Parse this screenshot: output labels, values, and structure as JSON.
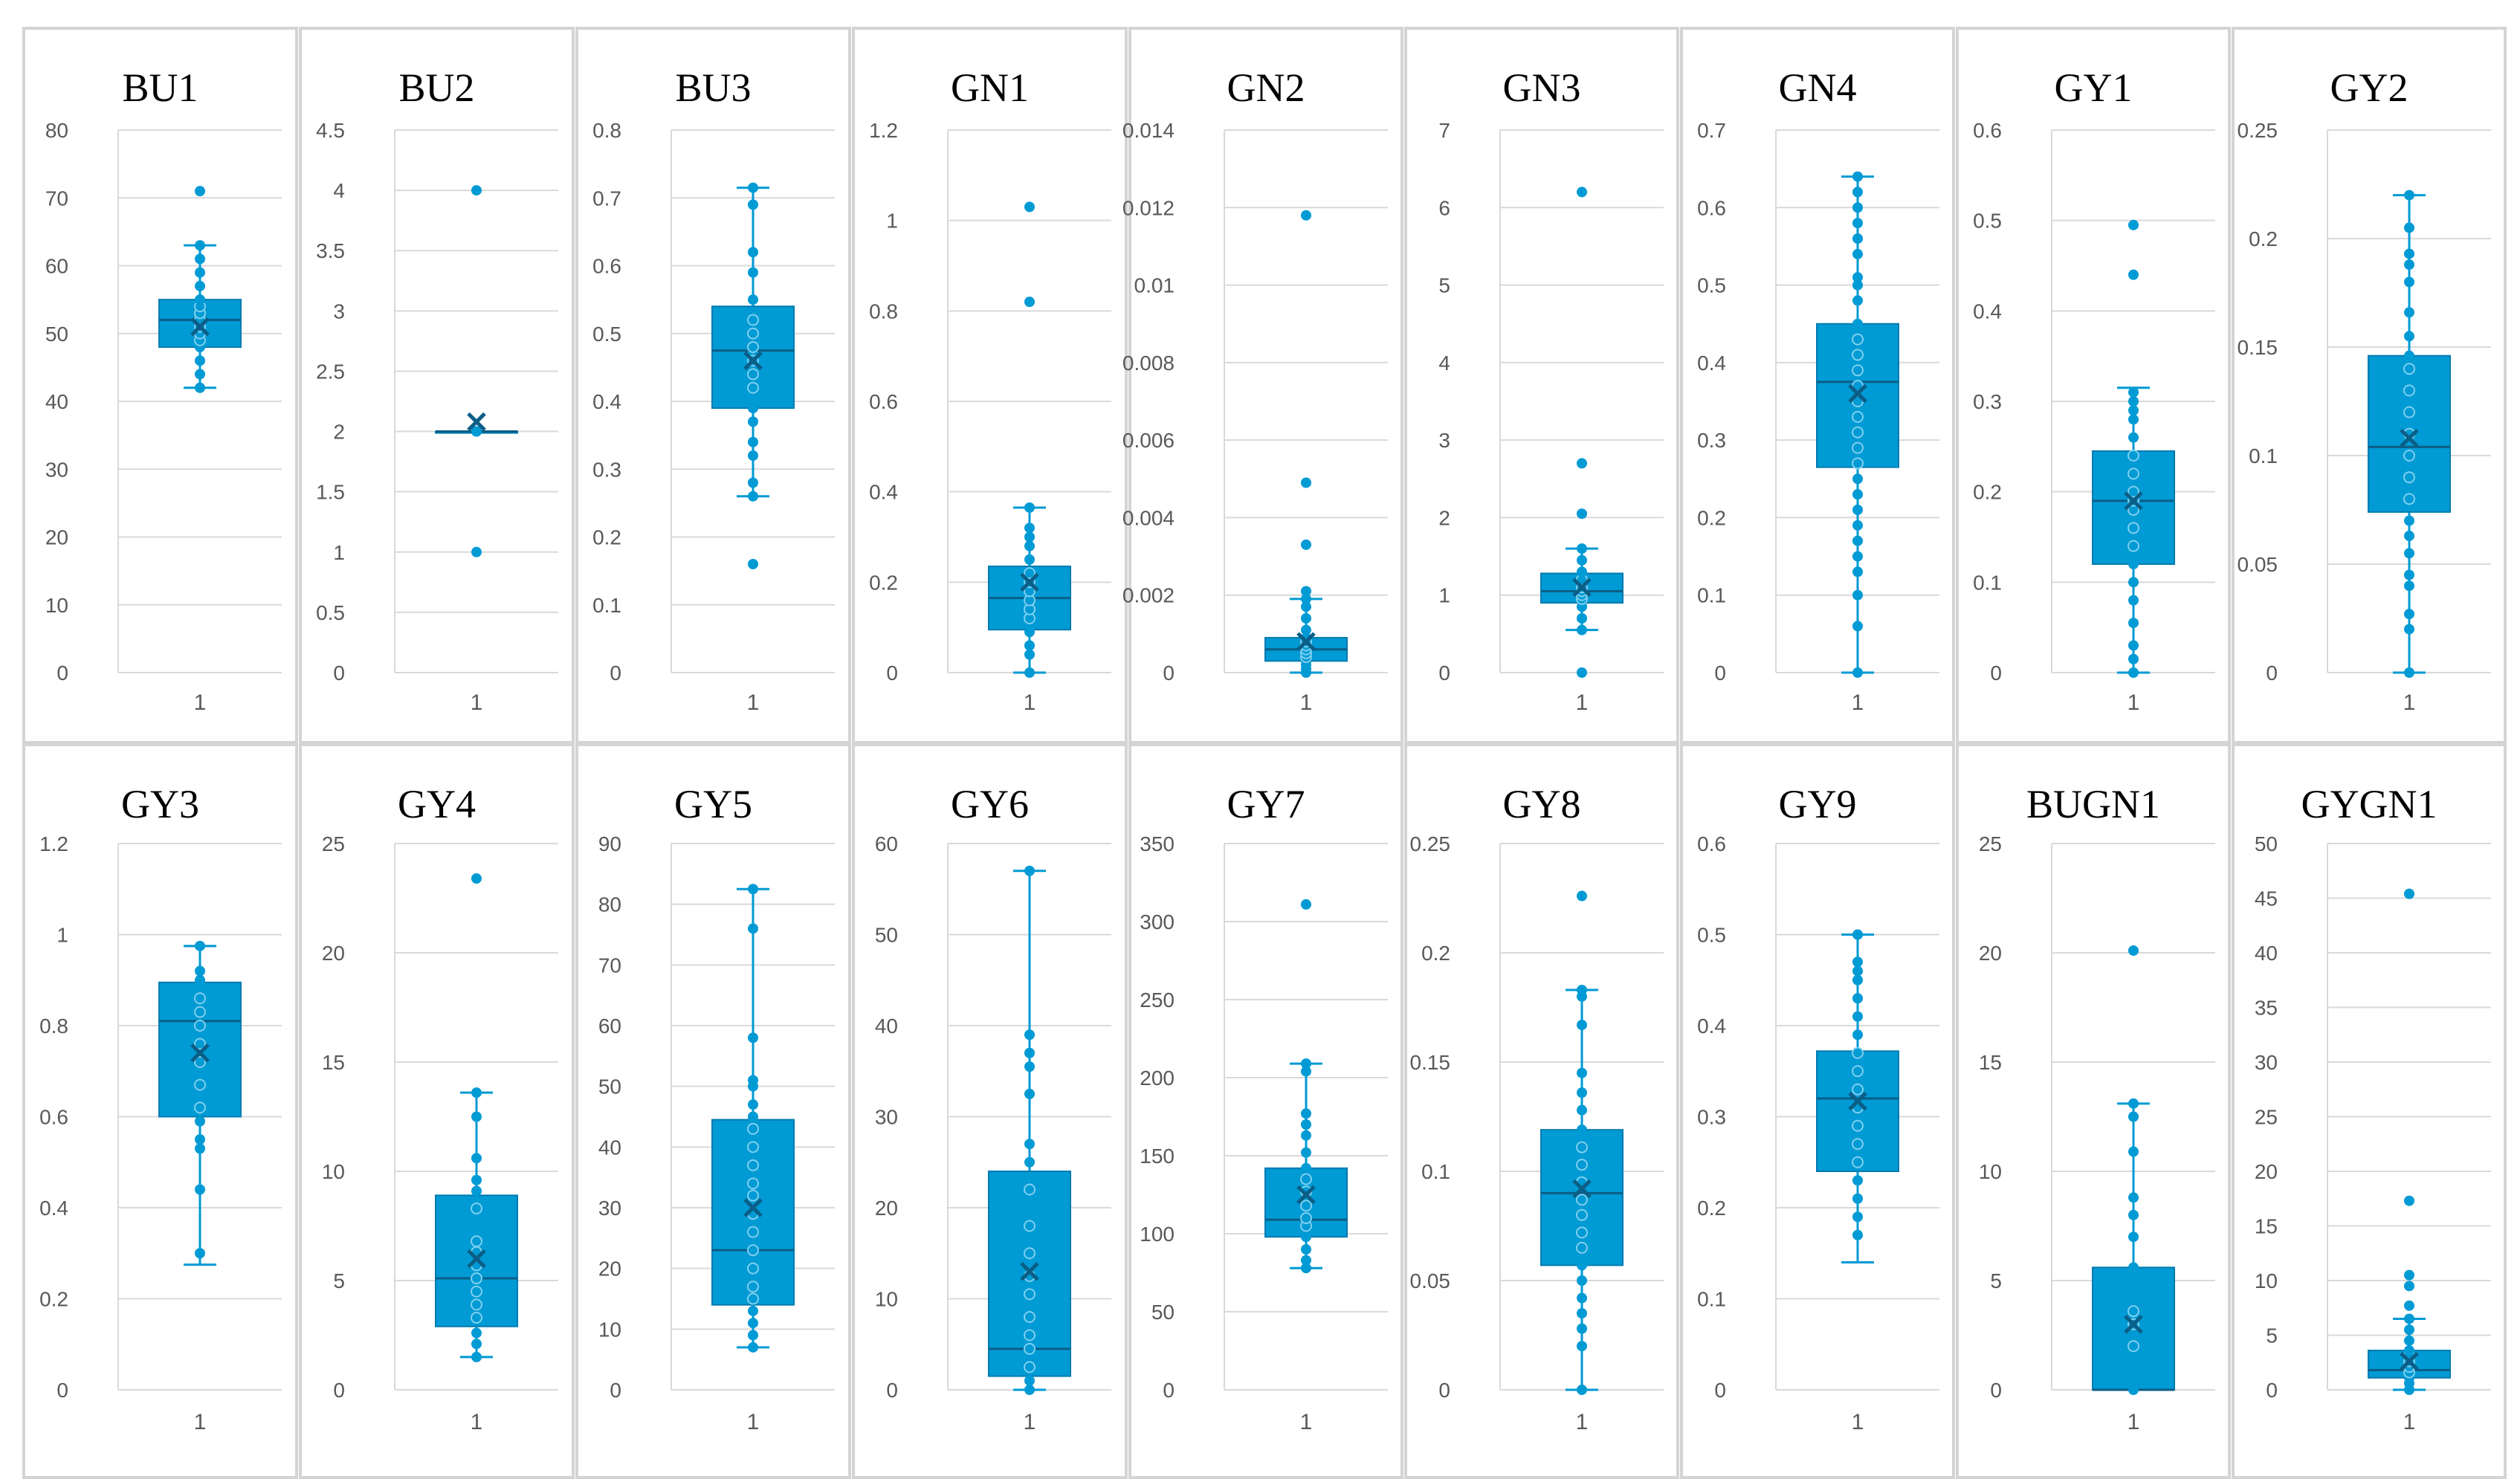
{
  "figure": {
    "title": "",
    "box_color": "#009ad4",
    "grid_color": "#d9d9d9",
    "outline_color": "#d4d4d4"
  },
  "chart_data": [
    {
      "type": "boxplot",
      "title": "BU1",
      "yticks": [
        "0",
        "10",
        "20",
        "30",
        "40",
        "50",
        "60",
        "70",
        "80"
      ],
      "ylim": [
        0,
        80
      ],
      "xlabel": "1",
      "box": {
        "q1": 48,
        "median": 52,
        "q3": 55,
        "mean": 51,
        "whisker_low": 42,
        "whisker_high": 63
      },
      "points": [
        42,
        44,
        46,
        48,
        49,
        50,
        51,
        52,
        53,
        54,
        55,
        57,
        59,
        61,
        63,
        71
      ]
    },
    {
      "type": "boxplot",
      "title": "BU2",
      "yticks": [
        "0",
        "0.5",
        "1",
        "1.5",
        "2",
        "2.5",
        "3",
        "3.5",
        "4",
        "4.5"
      ],
      "ylim": [
        0,
        4.5
      ],
      "xlabel": "1",
      "box": {
        "q1": 2,
        "median": 2,
        "q3": 2,
        "mean": 2.08,
        "whisker_low": 2,
        "whisker_high": 2
      },
      "points": [
        1,
        2,
        2,
        2,
        4
      ]
    },
    {
      "type": "boxplot",
      "title": "BU3",
      "yticks": [
        "0",
        "0.1",
        "0.2",
        "0.3",
        "0.4",
        "0.5",
        "0.6",
        "0.7",
        "0.8"
      ],
      "ylim": [
        0,
        0.8
      ],
      "xlabel": "1",
      "box": {
        "q1": 0.39,
        "median": 0.475,
        "q3": 0.54,
        "mean": 0.46,
        "whisker_low": 0.26,
        "whisker_high": 0.715
      },
      "points": [
        0.16,
        0.26,
        0.28,
        0.32,
        0.34,
        0.37,
        0.39,
        0.42,
        0.44,
        0.46,
        0.48,
        0.5,
        0.52,
        0.55,
        0.59,
        0.62,
        0.69,
        0.715
      ]
    },
    {
      "type": "boxplot",
      "title": "GN1",
      "yticks": [
        "0",
        "0.2",
        "0.4",
        "0.6",
        "0.8",
        "1",
        "1.2"
      ],
      "ylim": [
        0,
        1.2
      ],
      "xlabel": "1",
      "box": {
        "q1": 0.095,
        "median": 0.165,
        "q3": 0.235,
        "mean": 0.2,
        "whisker_low": 0,
        "whisker_high": 0.365
      },
      "points": [
        0,
        0.04,
        0.06,
        0.09,
        0.12,
        0.14,
        0.16,
        0.18,
        0.2,
        0.22,
        0.25,
        0.28,
        0.3,
        0.32,
        0.365,
        0.82,
        1.03
      ]
    },
    {
      "type": "boxplot",
      "title": "GN2",
      "yticks": [
        "0",
        "0.002",
        "0.004",
        "0.006",
        "0.008",
        "0.01",
        "0.012",
        "0.014"
      ],
      "ylim": [
        0,
        0.014
      ],
      "xlabel": "1",
      "box": {
        "q1": 0.0003,
        "median": 0.0006,
        "q3": 0.0009,
        "mean": 0.0008,
        "whisker_low": 0,
        "whisker_high": 0.0019
      },
      "points": [
        0,
        0.0001,
        0.0002,
        0.0003,
        0.0004,
        0.0005,
        0.0006,
        0.0007,
        0.0008,
        0.0009,
        0.0011,
        0.0014,
        0.0017,
        0.0019,
        0.0021,
        0.0033,
        0.0049,
        0.0118
      ]
    },
    {
      "type": "boxplot",
      "title": "GN3",
      "yticks": [
        "0",
        "1",
        "2",
        "3",
        "4",
        "5",
        "6",
        "7"
      ],
      "ylim": [
        0,
        7
      ],
      "xlabel": "1",
      "box": {
        "q1": 0.9,
        "median": 1.05,
        "q3": 1.28,
        "mean": 1.1,
        "whisker_low": 0.55,
        "whisker_high": 1.6
      },
      "points": [
        0,
        0.55,
        0.7,
        0.85,
        0.95,
        1,
        1.05,
        1.1,
        1.2,
        1.3,
        1.45,
        1.6,
        2.05,
        2.7,
        6.2
      ]
    },
    {
      "type": "boxplot",
      "title": "GN4",
      "yticks": [
        "0",
        "0.1",
        "0.2",
        "0.3",
        "0.4",
        "0.5",
        "0.6",
        "0.7"
      ],
      "ylim": [
        0,
        0.7
      ],
      "xlabel": "1",
      "box": {
        "q1": 0.265,
        "median": 0.375,
        "q3": 0.45,
        "mean": 0.36,
        "whisker_low": 0,
        "whisker_high": 0.64
      },
      "points": [
        0,
        0.06,
        0.1,
        0.13,
        0.15,
        0.17,
        0.19,
        0.21,
        0.23,
        0.25,
        0.27,
        0.29,
        0.31,
        0.33,
        0.35,
        0.37,
        0.39,
        0.41,
        0.43,
        0.45,
        0.48,
        0.5,
        0.51,
        0.54,
        0.56,
        0.58,
        0.6,
        0.62,
        0.64
      ]
    },
    {
      "type": "boxplot",
      "title": "GY1",
      "yticks": [
        "0",
        "0.1",
        "0.2",
        "0.3",
        "0.4",
        "0.5",
        "0.6"
      ],
      "ylim": [
        0,
        0.6
      ],
      "xlabel": "1",
      "box": {
        "q1": 0.12,
        "median": 0.19,
        "q3": 0.245,
        "mean": 0.19,
        "whisker_low": 0,
        "whisker_high": 0.315
      },
      "points": [
        0,
        0.015,
        0.03,
        0.055,
        0.08,
        0.1,
        0.12,
        0.14,
        0.16,
        0.18,
        0.19,
        0.2,
        0.22,
        0.24,
        0.26,
        0.28,
        0.29,
        0.3,
        0.31,
        0.44,
        0.495
      ]
    },
    {
      "type": "boxplot",
      "title": "GY2",
      "yticks": [
        "0",
        "0.05",
        "0.1",
        "0.15",
        "0.2",
        "0.25"
      ],
      "ylim": [
        0,
        0.25
      ],
      "xlabel": "1",
      "box": {
        "q1": 0.074,
        "median": 0.104,
        "q3": 0.146,
        "mean": 0.108,
        "whisker_low": 0,
        "whisker_high": 0.22
      },
      "points": [
        0,
        0.02,
        0.027,
        0.04,
        0.045,
        0.055,
        0.063,
        0.07,
        0.08,
        0.09,
        0.1,
        0.11,
        0.12,
        0.13,
        0.14,
        0.146,
        0.155,
        0.166,
        0.18,
        0.188,
        0.193,
        0.205,
        0.22
      ]
    },
    {
      "type": "boxplot",
      "title": "GY3",
      "yticks": [
        "0",
        "0.2",
        "0.4",
        "0.6",
        "0.8",
        "1",
        "1.2"
      ],
      "ylim": [
        0,
        1.2
      ],
      "xlabel": "1",
      "box": {
        "q1": 0.6,
        "median": 0.81,
        "q3": 0.895,
        "mean": 0.74,
        "whisker_low": 0.275,
        "whisker_high": 0.975
      },
      "points": [
        0.3,
        0.44,
        0.53,
        0.55,
        0.59,
        0.62,
        0.67,
        0.72,
        0.76,
        0.8,
        0.83,
        0.86,
        0.9,
        0.92,
        0.975
      ]
    },
    {
      "type": "boxplot",
      "title": "GY4",
      "yticks": [
        "0",
        "5",
        "10",
        "15",
        "20",
        "25"
      ],
      "ylim": [
        0,
        25
      ],
      "xlabel": "1",
      "box": {
        "q1": 2.9,
        "median": 5.1,
        "q3": 8.9,
        "mean": 6.0,
        "whisker_low": 1.5,
        "whisker_high": 13.6
      },
      "points": [
        1.5,
        2.1,
        2.6,
        3.3,
        3.9,
        4.5,
        5.1,
        5.7,
        6.3,
        6.8,
        8.3,
        9.1,
        9.6,
        10.6,
        12.5,
        13.6,
        23.4
      ]
    },
    {
      "type": "boxplot",
      "title": "GY5",
      "yticks": [
        "0",
        "10",
        "20",
        "30",
        "40",
        "50",
        "60",
        "70",
        "80",
        "90"
      ],
      "ylim": [
        0,
        90
      ],
      "xlabel": "1",
      "box": {
        "q1": 14,
        "median": 23,
        "q3": 44.5,
        "mean": 30,
        "whisker_low": 7,
        "whisker_high": 82.5
      },
      "points": [
        7,
        9,
        11,
        13,
        15,
        17,
        20,
        23,
        26,
        29,
        32,
        34,
        37,
        40,
        43,
        45,
        47,
        50,
        51,
        58,
        76,
        82.5
      ]
    },
    {
      "type": "boxplot",
      "title": "GY6",
      "yticks": [
        "0",
        "10",
        "20",
        "30",
        "40",
        "50",
        "60"
      ],
      "ylim": [
        0,
        60
      ],
      "xlabel": "1",
      "box": {
        "q1": 1.5,
        "median": 4.5,
        "q3": 24,
        "mean": 13,
        "whisker_low": 0,
        "whisker_high": 57
      },
      "points": [
        0,
        1,
        2.5,
        4.5,
        6,
        8,
        10.5,
        12.5,
        15,
        18,
        22,
        25,
        27,
        32.5,
        35.5,
        37,
        39,
        57
      ]
    },
    {
      "type": "boxplot",
      "title": "GY7",
      "yticks": [
        "0",
        "50",
        "100",
        "150",
        "200",
        "250",
        "300",
        "350"
      ],
      "ylim": [
        0,
        350
      ],
      "xlabel": "1",
      "box": {
        "q1": 98,
        "median": 109,
        "q3": 142,
        "mean": 125,
        "whisker_low": 78,
        "whisker_high": 209
      },
      "points": [
        78,
        83,
        90,
        98,
        105,
        110,
        118,
        127,
        135,
        142,
        152,
        163,
        170,
        177,
        204,
        209,
        311
      ]
    },
    {
      "type": "boxplot",
      "title": "GY8",
      "yticks": [
        "0",
        "0.05",
        "0.1",
        "0.15",
        "0.2",
        "0.25"
      ],
      "ylim": [
        0,
        0.25
      ],
      "xlabel": "1",
      "box": {
        "q1": 0.057,
        "median": 0.09,
        "q3": 0.119,
        "mean": 0.092,
        "whisker_low": 0,
        "whisker_high": 0.183
      },
      "points": [
        0,
        0.02,
        0.028,
        0.035,
        0.042,
        0.05,
        0.057,
        0.065,
        0.072,
        0.08,
        0.087,
        0.095,
        0.103,
        0.111,
        0.119,
        0.128,
        0.136,
        0.145,
        0.167,
        0.18,
        0.183,
        0.226
      ]
    },
    {
      "type": "boxplot",
      "title": "GY9",
      "yticks": [
        "0",
        "0.1",
        "0.2",
        "0.3",
        "0.4",
        "0.5",
        "0.6"
      ],
      "ylim": [
        0,
        0.6
      ],
      "xlabel": "1",
      "box": {
        "q1": 0.24,
        "median": 0.32,
        "q3": 0.372,
        "mean": 0.317,
        "whisker_low": 0.14,
        "whisker_high": 0.5
      },
      "points": [
        0.17,
        0.19,
        0.21,
        0.23,
        0.25,
        0.27,
        0.29,
        0.31,
        0.33,
        0.35,
        0.37,
        0.39,
        0.41,
        0.43,
        0.45,
        0.46,
        0.47,
        0.5
      ]
    },
    {
      "type": "boxplot",
      "title": "BUGN1",
      "yticks": [
        "0",
        "5",
        "10",
        "15",
        "20",
        "25"
      ],
      "ylim": [
        0,
        25
      ],
      "xlabel": "1",
      "box": {
        "q1": 0,
        "median": 0,
        "q3": 5.6,
        "mean": 3,
        "whisker_low": 0,
        "whisker_high": 13.1
      },
      "points": [
        0,
        2,
        3,
        3.6,
        5.6,
        7,
        8,
        8.8,
        10.9,
        12.5,
        13.1,
        20.1
      ]
    },
    {
      "type": "boxplot",
      "title": "GYGN1",
      "yticks": [
        "0",
        "5",
        "10",
        "15",
        "20",
        "25",
        "30",
        "35",
        "40",
        "45",
        "50"
      ],
      "ylim": [
        0,
        50
      ],
      "xlabel": "1",
      "box": {
        "q1": 1.1,
        "median": 1.8,
        "q3": 3.6,
        "mean": 2.6,
        "whisker_low": 0,
        "whisker_high": 6.5
      },
      "points": [
        0,
        0.6,
        1.1,
        1.6,
        2.1,
        2.6,
        3.1,
        3.6,
        4.5,
        5.5,
        6.5,
        7.7,
        9.5,
        10.5,
        17.3,
        45.4
      ]
    }
  ]
}
